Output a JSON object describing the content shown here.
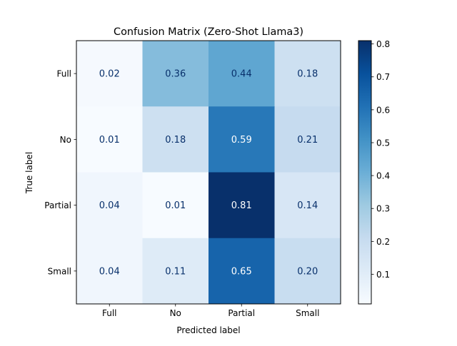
{
  "chart_data": {
    "type": "heatmap",
    "title": "Confusion Matrix (Zero-Shot Llama3)",
    "xlabel": "Predicted label",
    "ylabel": "True label",
    "x_categories": [
      "Full",
      "No",
      "Partial",
      "Small"
    ],
    "y_categories": [
      "Full",
      "No",
      "Partial",
      "Small"
    ],
    "values": [
      [
        0.02,
        0.36,
        0.44,
        0.18
      ],
      [
        0.01,
        0.18,
        0.59,
        0.21
      ],
      [
        0.04,
        0.01,
        0.81,
        0.14
      ],
      [
        0.04,
        0.11,
        0.65,
        0.2
      ]
    ],
    "value_labels": [
      [
        "0.02",
        "0.36",
        "0.44",
        "0.18"
      ],
      [
        "0.01",
        "0.18",
        "0.59",
        "0.21"
      ],
      [
        "0.04",
        "0.01",
        "0.81",
        "0.14"
      ],
      [
        "0.04",
        "0.11",
        "0.65",
        "0.20"
      ]
    ],
    "colormap": "Blues",
    "colorbar": {
      "range": [
        0.01,
        0.81
      ],
      "ticks": [
        0.1,
        0.2,
        0.3,
        0.4,
        0.5,
        0.6,
        0.7,
        0.8
      ],
      "tick_labels": [
        "0.1",
        "0.2",
        "0.3",
        "0.4",
        "0.5",
        "0.6",
        "0.7",
        "0.8"
      ]
    },
    "text_colors": {
      "light_cells": "#08306b",
      "dark_cells": "#ffffff"
    },
    "grid": false
  }
}
